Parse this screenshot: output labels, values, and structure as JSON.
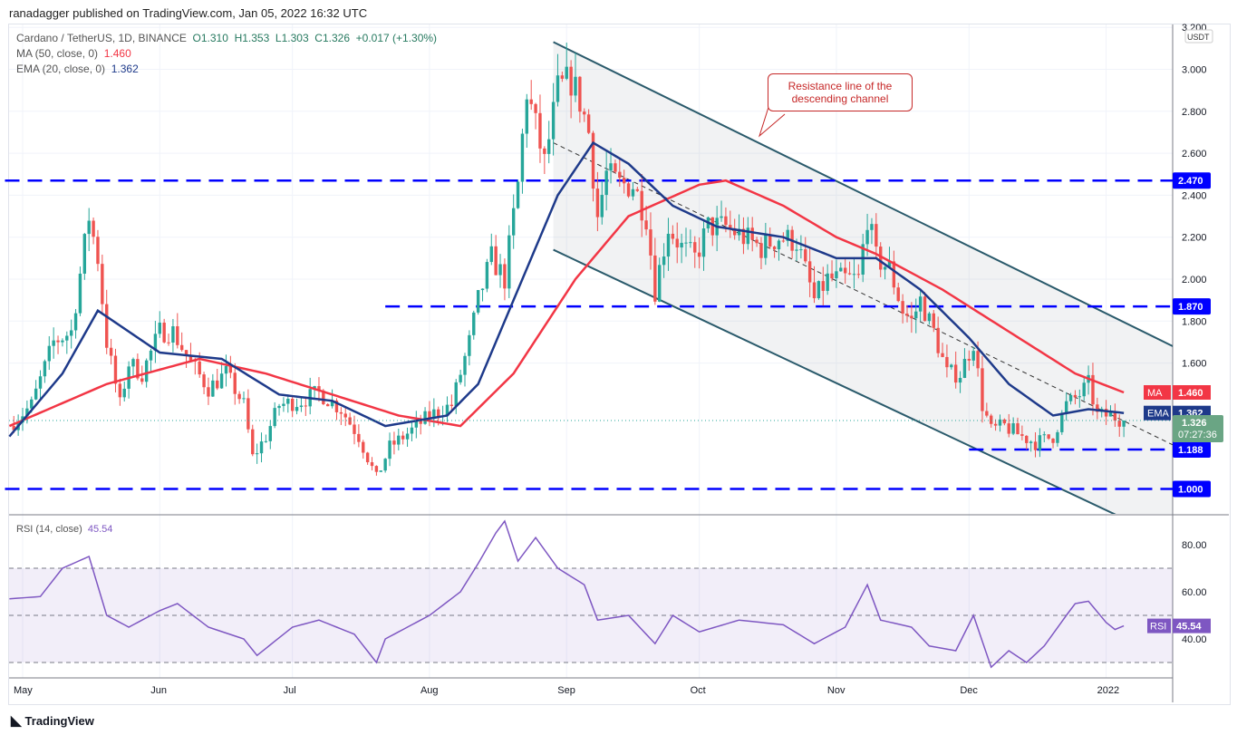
{
  "header": {
    "published": "ranadagger published on TradingView.com, Jan 05, 2022 16:32 UTC"
  },
  "legend": {
    "symbol": "Cardano / TetherUS, 1D, BINANCE",
    "ohlc": "O1.310  H1.353  L1.303  C1.326  +0.017 (+1.30%)",
    "ma_label": "MA (50, close, 0)",
    "ma_value": "1.460",
    "ema_label": "EMA (20, close, 0)",
    "ema_value": "1.362",
    "rsi_label": "RSI (14, close)",
    "rsi_value": "45.54"
  },
  "annotation": "Resistance line of the descending channel",
  "footer": {
    "brand": "TradingView"
  },
  "colors": {
    "up": "#26a69a",
    "down": "#ef5350",
    "ma": "#f23645",
    "ema": "#1e3a8a",
    "rsi": "#7e57c2",
    "level": "#0000ff",
    "channel": "#2a5a6b"
  },
  "chart_data": [
    {
      "type": "candlestick",
      "currency": "USDT",
      "ylim": [
        0.9,
        3.2
      ],
      "yticks": [
        1.8,
        2.0,
        2.2,
        2.4,
        2.6,
        2.8,
        3.0,
        3.2,
        1.6
      ],
      "xticks": [
        "May",
        "Jun",
        "Jul",
        "Aug",
        "Sep",
        "Oct",
        "Nov",
        "Dec",
        "2022"
      ],
      "xtick_dates": [
        "2021-05-01",
        "2021-06-01",
        "2021-07-01",
        "2021-08-01",
        "2021-09-01",
        "2021-10-01",
        "2021-11-01",
        "2021-12-01",
        "2022-01-01"
      ],
      "close_keypoints": [
        [
          "2021-04-28",
          1.3
        ],
        [
          "2021-05-03",
          1.4
        ],
        [
          "2021-05-08",
          1.7
        ],
        [
          "2021-05-12",
          1.75
        ],
        [
          "2021-05-16",
          2.3
        ],
        [
          "2021-05-18",
          2.1
        ],
        [
          "2021-05-20",
          1.7
        ],
        [
          "2021-05-23",
          1.4
        ],
        [
          "2021-05-25",
          1.6
        ],
        [
          "2021-05-28",
          1.55
        ],
        [
          "2021-06-01",
          1.75
        ],
        [
          "2021-06-04",
          1.75
        ],
        [
          "2021-06-08",
          1.6
        ],
        [
          "2021-06-12",
          1.48
        ],
        [
          "2021-06-16",
          1.55
        ],
        [
          "2021-06-20",
          1.4
        ],
        [
          "2021-06-22",
          1.15
        ],
        [
          "2021-06-25",
          1.25
        ],
        [
          "2021-06-28",
          1.4
        ],
        [
          "2021-07-03",
          1.42
        ],
        [
          "2021-07-07",
          1.46
        ],
        [
          "2021-07-12",
          1.38
        ],
        [
          "2021-07-16",
          1.25
        ],
        [
          "2021-07-20",
          1.05
        ],
        [
          "2021-07-23",
          1.2
        ],
        [
          "2021-07-28",
          1.28
        ],
        [
          "2021-08-01",
          1.35
        ],
        [
          "2021-08-06",
          1.4
        ],
        [
          "2021-08-10",
          1.7
        ],
        [
          "2021-08-12",
          1.9
        ],
        [
          "2021-08-15",
          2.1
        ],
        [
          "2021-08-18",
          2.0
        ],
        [
          "2021-08-21",
          2.45
        ],
        [
          "2021-08-23",
          2.9
        ],
        [
          "2021-08-27",
          2.55
        ],
        [
          "2021-08-30",
          2.9
        ],
        [
          "2021-09-02",
          2.95
        ],
        [
          "2021-09-04",
          2.85
        ],
        [
          "2021-09-06",
          2.7
        ],
        [
          "2021-09-08",
          2.3
        ],
        [
          "2021-09-10",
          2.5
        ],
        [
          "2021-09-13",
          2.45
        ],
        [
          "2021-09-16",
          2.45
        ],
        [
          "2021-09-19",
          2.3
        ],
        [
          "2021-09-21",
          1.95
        ],
        [
          "2021-09-24",
          2.25
        ],
        [
          "2021-09-27",
          2.15
        ],
        [
          "2021-09-30",
          2.1
        ],
        [
          "2021-10-03",
          2.25
        ],
        [
          "2021-10-07",
          2.25
        ],
        [
          "2021-10-11",
          2.2
        ],
        [
          "2021-10-15",
          2.15
        ],
        [
          "2021-10-19",
          2.2
        ],
        [
          "2021-10-23",
          2.18
        ],
        [
          "2021-10-27",
          1.9
        ],
        [
          "2021-10-30",
          2.0
        ],
        [
          "2021-11-03",
          2.0
        ],
        [
          "2021-11-06",
          2.0
        ],
        [
          "2021-11-08",
          2.3
        ],
        [
          "2021-11-10",
          2.1
        ],
        [
          "2021-11-13",
          2.05
        ],
        [
          "2021-11-16",
          1.85
        ],
        [
          "2021-11-18",
          1.8
        ],
        [
          "2021-11-20",
          1.9
        ],
        [
          "2021-11-23",
          1.75
        ],
        [
          "2021-11-26",
          1.55
        ],
        [
          "2021-11-29",
          1.55
        ],
        [
          "2021-12-02",
          1.7
        ],
        [
          "2021-12-04",
          1.4
        ],
        [
          "2021-12-06",
          1.28
        ],
        [
          "2021-12-09",
          1.3
        ],
        [
          "2021-12-13",
          1.25
        ],
        [
          "2021-12-16",
          1.22
        ],
        [
          "2021-12-20",
          1.25
        ],
        [
          "2021-12-23",
          1.4
        ],
        [
          "2021-12-26",
          1.45
        ],
        [
          "2021-12-28",
          1.5
        ],
        [
          "2021-12-30",
          1.35
        ],
        [
          "2022-01-02",
          1.35
        ],
        [
          "2022-01-05",
          1.326
        ]
      ],
      "ma50": [
        [
          "2021-04-28",
          1.3
        ],
        [
          "2021-05-20",
          1.5
        ],
        [
          "2021-06-10",
          1.62
        ],
        [
          "2021-06-25",
          1.55
        ],
        [
          "2021-07-10",
          1.45
        ],
        [
          "2021-07-25",
          1.35
        ],
        [
          "2021-08-08",
          1.3
        ],
        [
          "2021-08-20",
          1.55
        ],
        [
          "2021-09-03",
          2.0
        ],
        [
          "2021-09-15",
          2.3
        ],
        [
          "2021-10-01",
          2.45
        ],
        [
          "2021-10-07",
          2.47
        ],
        [
          "2021-10-20",
          2.35
        ],
        [
          "2021-11-01",
          2.2
        ],
        [
          "2021-11-10",
          2.12
        ],
        [
          "2021-11-25",
          1.95
        ],
        [
          "2021-12-10",
          1.75
        ],
        [
          "2021-12-25",
          1.55
        ],
        [
          "2022-01-05",
          1.46
        ]
      ],
      "ema20": [
        [
          "2021-04-28",
          1.25
        ],
        [
          "2021-05-10",
          1.55
        ],
        [
          "2021-05-18",
          1.85
        ],
        [
          "2021-06-01",
          1.65
        ],
        [
          "2021-06-15",
          1.62
        ],
        [
          "2021-06-28",
          1.45
        ],
        [
          "2021-07-10",
          1.42
        ],
        [
          "2021-07-22",
          1.3
        ],
        [
          "2021-08-05",
          1.35
        ],
        [
          "2021-08-12",
          1.5
        ],
        [
          "2021-08-20",
          1.9
        ],
        [
          "2021-08-30",
          2.4
        ],
        [
          "2021-09-07",
          2.65
        ],
        [
          "2021-09-15",
          2.55
        ],
        [
          "2021-09-25",
          2.35
        ],
        [
          "2021-10-05",
          2.25
        ],
        [
          "2021-10-20",
          2.2
        ],
        [
          "2021-11-01",
          2.1
        ],
        [
          "2021-11-10",
          2.1
        ],
        [
          "2021-11-20",
          1.95
        ],
        [
          "2021-12-01",
          1.72
        ],
        [
          "2021-12-10",
          1.5
        ],
        [
          "2021-12-20",
          1.35
        ],
        [
          "2021-12-28",
          1.38
        ],
        [
          "2022-01-05",
          1.362
        ]
      ],
      "levels": [
        {
          "value": 2.47,
          "label": "2.470",
          "from": "2021-04-27"
        },
        {
          "value": 1.87,
          "label": "1.870",
          "from": "2021-07-22"
        },
        {
          "value": 1.188,
          "label": "1.188",
          "from": "2021-12-01"
        },
        {
          "value": 1.0,
          "label": "1.000",
          "from": "2021-04-27"
        }
      ],
      "channel": {
        "upper": [
          [
            "2021-08-29",
            3.13
          ],
          [
            "2022-01-19",
            1.65
          ]
        ],
        "lower": [
          [
            "2021-08-29",
            2.14
          ],
          [
            "2022-01-19",
            0.72
          ]
        ],
        "mid": [
          [
            "2021-08-29",
            2.65
          ],
          [
            "2022-01-19",
            1.18
          ]
        ]
      },
      "price_labels": [
        {
          "name": "MA",
          "value": "1.460"
        },
        {
          "name": "EMA",
          "value": "1.362"
        },
        {
          "name": "",
          "value": "1.326",
          "extra": "07:27:36"
        }
      ]
    },
    {
      "type": "line",
      "title": "RSI (14, close)",
      "ylim": [
        20,
        95
      ],
      "yticks": [
        "80.00",
        "60.00",
        "40.00"
      ],
      "band": [
        30,
        70
      ],
      "mid": 50,
      "values": [
        [
          "2021-04-28",
          57
        ],
        [
          "2021-05-05",
          58
        ],
        [
          "2021-05-10",
          70
        ],
        [
          "2021-05-16",
          75
        ],
        [
          "2021-05-20",
          50
        ],
        [
          "2021-05-25",
          45
        ],
        [
          "2021-06-01",
          52
        ],
        [
          "2021-06-05",
          55
        ],
        [
          "2021-06-12",
          45
        ],
        [
          "2021-06-20",
          40
        ],
        [
          "2021-06-23",
          33
        ],
        [
          "2021-07-01",
          45
        ],
        [
          "2021-07-07",
          48
        ],
        [
          "2021-07-15",
          42
        ],
        [
          "2021-07-20",
          30
        ],
        [
          "2021-07-22",
          40
        ],
        [
          "2021-08-01",
          50
        ],
        [
          "2021-08-08",
          60
        ],
        [
          "2021-08-12",
          72
        ],
        [
          "2021-08-16",
          85
        ],
        [
          "2021-08-18",
          90
        ],
        [
          "2021-08-21",
          73
        ],
        [
          "2021-08-25",
          83
        ],
        [
          "2021-08-30",
          70
        ],
        [
          "2021-09-05",
          63
        ],
        [
          "2021-09-08",
          48
        ],
        [
          "2021-09-15",
          50
        ],
        [
          "2021-09-21",
          38
        ],
        [
          "2021-09-25",
          50
        ],
        [
          "2021-10-01",
          43
        ],
        [
          "2021-10-10",
          48
        ],
        [
          "2021-10-20",
          46
        ],
        [
          "2021-10-27",
          38
        ],
        [
          "2021-11-03",
          45
        ],
        [
          "2021-11-08",
          63
        ],
        [
          "2021-11-11",
          48
        ],
        [
          "2021-11-18",
          45
        ],
        [
          "2021-11-22",
          37
        ],
        [
          "2021-11-28",
          35
        ],
        [
          "2021-12-02",
          50
        ],
        [
          "2021-12-06",
          28
        ],
        [
          "2021-12-10",
          35
        ],
        [
          "2021-12-14",
          30
        ],
        [
          "2021-12-18",
          37
        ],
        [
          "2021-12-23",
          50
        ],
        [
          "2021-12-25",
          55
        ],
        [
          "2021-12-28",
          56
        ],
        [
          "2022-01-01",
          47
        ],
        [
          "2022-01-03",
          44
        ],
        [
          "2022-01-05",
          45.54
        ]
      ]
    }
  ]
}
